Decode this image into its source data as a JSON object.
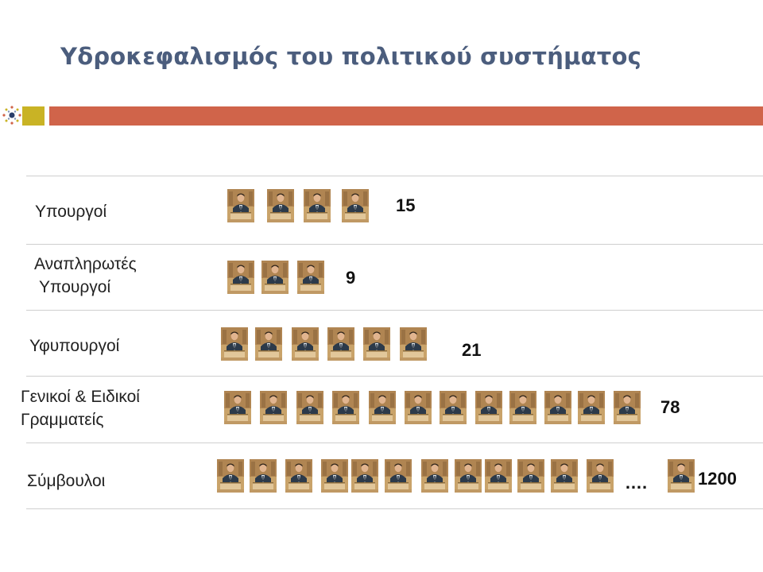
{
  "slide": {
    "title": "Υδροκεφαλισμός του πολιτικού συστήματος"
  },
  "colors": {
    "title": "#4b5d7d",
    "accent_bar": "#d0644a",
    "accent_square": "#c9b325"
  },
  "chart_data": {
    "type": "pictograph",
    "title": "Υδροκεφαλισμός του πολιτικού συστήματος",
    "categories": [
      "Υπουργοί",
      "Αναπληρωτές Υπουργοί",
      "Υφυπουργοί",
      "Γενικοί & Ειδικοί Γραμματείς",
      "Σύμβουλοι"
    ],
    "values": [
      15,
      9,
      21,
      78,
      1200
    ],
    "value_labels": [
      "15",
      "9",
      "21",
      "78",
      "1200"
    ],
    "icons_shown": [
      4,
      3,
      6,
      12,
      13
    ],
    "icon": "person-at-podium-icon",
    "label_lines": [
      [
        "Υπουργοί"
      ],
      [
        "Αναπληρωτές",
        "Υπουργοί"
      ],
      [
        "Υφυπουργοί"
      ],
      [
        "Γενικοί & Ειδικοί",
        "Γραμματείς"
      ],
      [
        "Σύμβουλοι"
      ]
    ],
    "truncation_marker": "…."
  }
}
